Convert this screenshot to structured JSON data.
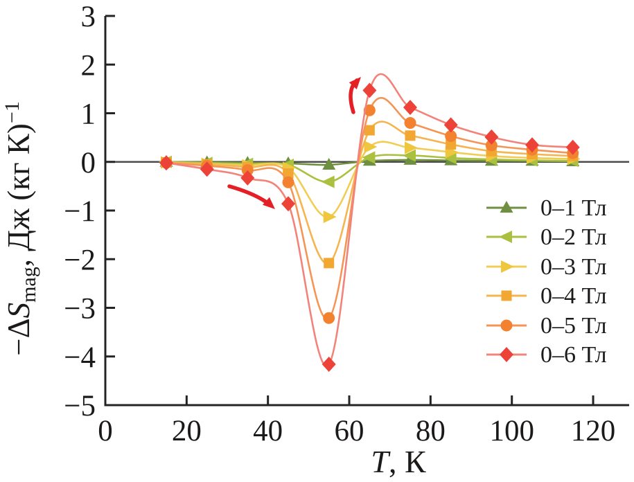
{
  "figure": {
    "background": "#ffffff",
    "axis_color": "#262423",
    "text_color": "#1c1a19",
    "zero_line_color": "#4d4c4b",
    "arrow_color": "#e51f26"
  },
  "chart_data": {
    "type": "line",
    "title": "",
    "xlabel": "T, К",
    "xlabel_parts": {
      "italic": "T",
      "rest": ", К"
    },
    "ylabel": "−ΔSmag, Дж (кг К)−1",
    "ylabel_parts": {
      "prefix": "−Δ",
      "symbol_italic": "S",
      "subscript": "mag",
      "middle": ", Дж (кг К)",
      "superscript": "−1"
    },
    "xlim": [
      0,
      130
    ],
    "ylim": [
      -5,
      3
    ],
    "x_ticks": [
      0,
      20,
      40,
      60,
      80,
      100,
      120
    ],
    "y_ticks": [
      3,
      2,
      1,
      0,
      -1,
      -2,
      -3,
      -4,
      -5
    ],
    "grid": false,
    "zero_line": true,
    "legend_position": "right-middle",
    "x": [
      15,
      25,
      35,
      45,
      55,
      65,
      75,
      85,
      95,
      105,
      115
    ],
    "series": [
      {
        "name": "0–1 Тл",
        "marker": "triangle-up",
        "marker_color": "#6e9040",
        "line_color": "#6e9040",
        "values": [
          0.0,
          -0.01,
          -0.02,
          -0.03,
          -0.06,
          0.02,
          0.04,
          0.03,
          0.02,
          0.02,
          0.01
        ]
      },
      {
        "name": "0–2 Тл",
        "marker": "triangle-left",
        "marker_color": "#abc03e",
        "line_color": "#abc03e",
        "values": [
          0.0,
          -0.02,
          -0.04,
          -0.06,
          -0.41,
          0.09,
          0.13,
          0.08,
          0.05,
          0.03,
          0.02
        ]
      },
      {
        "name": "0–3 Тл",
        "marker": "triangle-right",
        "marker_color": "#eec73e",
        "line_color": "#f0cd55",
        "values": [
          -0.01,
          -0.04,
          -0.07,
          -0.12,
          -1.13,
          0.31,
          0.29,
          0.2,
          0.12,
          0.08,
          0.06
        ]
      },
      {
        "name": "0–4 Тл",
        "marker": "square",
        "marker_color": "#f2a733",
        "line_color": "#f5b44e",
        "values": [
          -0.01,
          -0.05,
          -0.11,
          -0.24,
          -2.08,
          0.65,
          0.54,
          0.36,
          0.22,
          0.16,
          0.12
        ]
      },
      {
        "name": "0–5 Тл",
        "marker": "circle",
        "marker_color": "#f28130",
        "line_color": "#f49555",
        "values": [
          -0.02,
          -0.08,
          -0.17,
          -0.42,
          -3.21,
          1.06,
          0.8,
          0.53,
          0.34,
          0.25,
          0.18
        ]
      },
      {
        "name": "0–6 Тл",
        "marker": "diamond",
        "marker_color": "#ec4238",
        "line_color": "#f3837a",
        "values": [
          -0.02,
          -0.15,
          -0.33,
          -0.86,
          -4.16,
          1.47,
          1.12,
          0.76,
          0.51,
          0.35,
          0.3
        ]
      }
    ],
    "annotations": [
      {
        "type": "arrow",
        "id": "arrow-down",
        "direction": "down-right",
        "meaning": "entropy decrease branch"
      },
      {
        "type": "arrow",
        "id": "arrow-up",
        "direction": "up-right",
        "meaning": "entropy increase branch"
      }
    ]
  }
}
